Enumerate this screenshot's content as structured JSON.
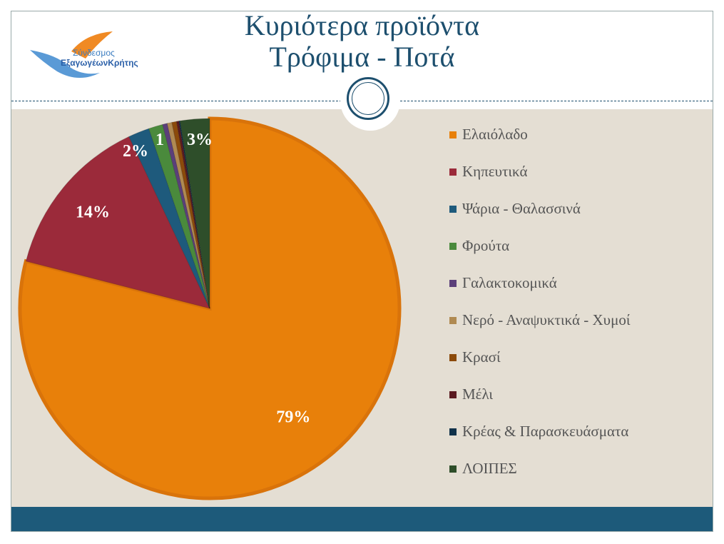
{
  "title": {
    "line1": "Κυριότερα προϊόντα",
    "line2": "Τρόφιμα - Ποτά"
  },
  "logo": {
    "text_line1": "Σύνδεσμος",
    "text_line2": "ΕξαγωγέωνΚρήτης"
  },
  "chart_data": {
    "type": "pie",
    "start": "top, clockwise",
    "legend_position": "right",
    "categories": [
      "Ελαιόλαδο",
      "Κηπευτικά",
      "Ψάρια - Θαλασσινά",
      "Φρούτα",
      "Γαλακτοκομικά",
      "Νερό - Αναψυκτικά - Χυμοί",
      "Κρασί",
      "Μέλι",
      "Κρέας & Παρασκευάσματα",
      "ΛΟΙΠΕΣ"
    ],
    "values": [
      79,
      14,
      1.8,
      1.2,
      0.4,
      0.4,
      0.4,
      0.2,
      0.1,
      2.5
    ],
    "data_labels": [
      "79%",
      "14%",
      "2%",
      "1%",
      "",
      "",
      "",
      "",
      "",
      "3%"
    ],
    "colors": [
      "#e8800a",
      "#9b2a3a",
      "#1e5a7c",
      "#4a8a3c",
      "#5b3f7a",
      "#b08a52",
      "#8b4a0a",
      "#5a1a20",
      "#10324a",
      "#2e4e2a"
    ]
  }
}
